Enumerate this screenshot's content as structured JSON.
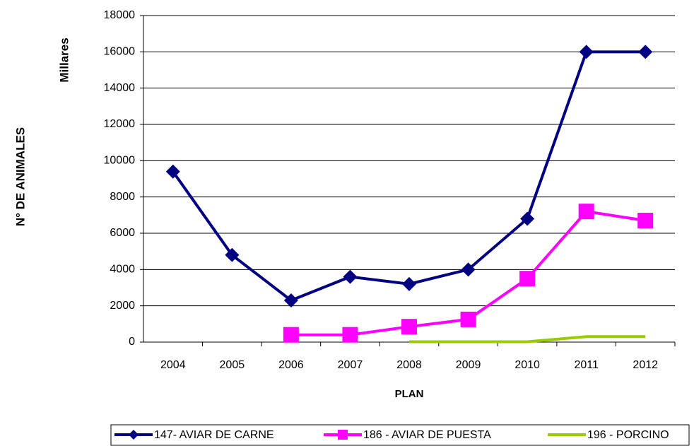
{
  "chart_data": {
    "type": "line",
    "y_label": "N° DE ANIMALES",
    "y_unit_label": "Millares",
    "x_label": "PLAN",
    "categories": [
      "2004",
      "2005",
      "2006",
      "2007",
      "2008",
      "2009",
      "2010",
      "2011",
      "2012"
    ],
    "series": [
      {
        "name": "147- AVIAR DE CARNE",
        "color": "#000080",
        "marker": "diamond",
        "values": [
          9400,
          4800,
          2300,
          3600,
          3200,
          4000,
          6800,
          16000,
          16000
        ]
      },
      {
        "name": "186 - AVIAR DE PUESTA",
        "color": "#ff00ff",
        "marker": "square",
        "values": [
          null,
          null,
          400,
          400,
          850,
          1250,
          3500,
          7200,
          6700
        ]
      },
      {
        "name": "196 - PORCINO",
        "color": "#99cc00",
        "marker": "none",
        "values": [
          null,
          null,
          null,
          null,
          20,
          20,
          20,
          300,
          300
        ]
      }
    ],
    "ylim": [
      0,
      18000
    ],
    "yticks": [
      0,
      2000,
      4000,
      6000,
      8000,
      10000,
      12000,
      14000,
      16000,
      18000
    ],
    "grid": true,
    "legend": "bottom"
  }
}
